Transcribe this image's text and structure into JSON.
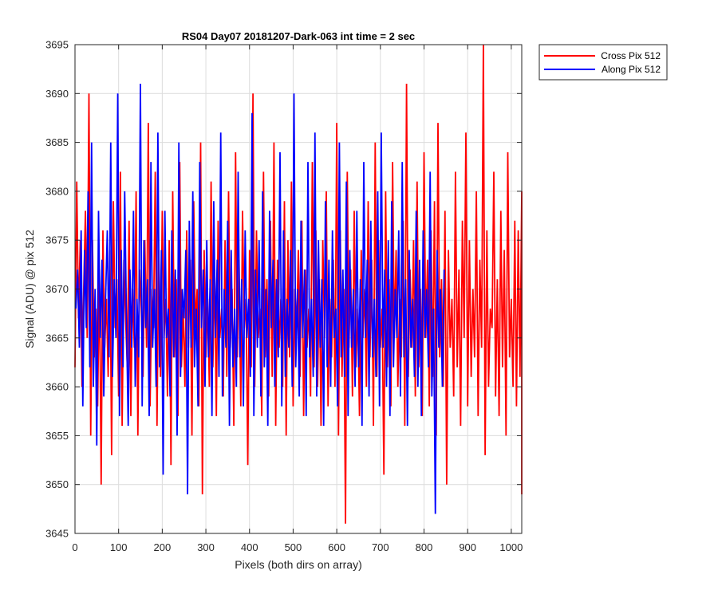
{
  "chart_data": {
    "type": "line",
    "title": "RS04 Day07 20181207-Dark-063 int time = 2 sec",
    "xlabel": "Pixels (both dirs on array)",
    "ylabel": "Signal (ADU) @ pix 512",
    "xlim": [
      0,
      1024
    ],
    "ylim": [
      3645,
      3695
    ],
    "xticks": [
      0,
      100,
      200,
      300,
      400,
      500,
      600,
      700,
      800,
      900,
      1000
    ],
    "yticks": [
      3645,
      3650,
      3655,
      3660,
      3665,
      3670,
      3675,
      3680,
      3685,
      3690,
      3695
    ],
    "grid": true,
    "legend_position": "outside-top-right",
    "series": [
      {
        "name": "Cross Pix 512",
        "color": "#ff0000",
        "x_start": 0,
        "x_step": 4,
        "y": [
          3662,
          3681,
          3667,
          3675,
          3660,
          3670,
          3678,
          3665,
          3690,
          3655,
          3675,
          3663,
          3668,
          3658,
          3672,
          3650,
          3676,
          3664,
          3669,
          3661,
          3674,
          3653,
          3679,
          3666,
          3671,
          3659,
          3682,
          3656,
          3673,
          3667,
          3662,
          3677,
          3657,
          3670,
          3664,
          3680,
          3655,
          3672,
          3668,
          3661,
          3675,
          3664,
          3687,
          3658,
          3670,
          3666,
          3682,
          3656,
          3674,
          3661,
          3678,
          3665,
          3669,
          3659,
          3675,
          3652,
          3680,
          3663,
          3671,
          3657,
          3683,
          3662,
          3668,
          3660,
          3676,
          3664,
          3673,
          3655,
          3679,
          3666,
          3670,
          3658,
          3685,
          3649,
          3674,
          3663,
          3669,
          3660,
          3681,
          3662,
          3672,
          3657,
          3677,
          3665,
          3668,
          3659,
          3675,
          3661,
          3680,
          3664,
          3670,
          3656,
          3684,
          3663,
          3673,
          3658,
          3678,
          3666,
          3669,
          3652,
          3674,
          3662,
          3690,
          3660,
          3676,
          3665,
          3668,
          3657,
          3682,
          3663,
          3671,
          3659,
          3677,
          3661,
          3685,
          3656,
          3673,
          3664,
          3669,
          3660,
          3679,
          3655,
          3675,
          3663,
          3681,
          3658,
          3670,
          3666,
          3674,
          3661,
          3677,
          3657,
          3672,
          3664,
          3668,
          3659,
          3683,
          3662,
          3676,
          3660,
          3671,
          3656,
          3675,
          3665,
          3680,
          3658,
          3669,
          3663,
          3673,
          3660,
          3687,
          3655,
          3676,
          3661,
          3670,
          3646,
          3682,
          3664,
          3672,
          3659,
          3678,
          3662,
          3668,
          3657,
          3674,
          3665,
          3670,
          3660,
          3679,
          3663,
          3673,
          3656,
          3685,
          3661,
          3675,
          3664,
          3668,
          3651,
          3680,
          3662,
          3671,
          3658,
          3683,
          3665,
          3674,
          3660,
          3669,
          3663,
          3677,
          3656,
          3691,
          3661,
          3672,
          3664,
          3675,
          3659,
          3681,
          3662,
          3670,
          3657,
          3684,
          3665,
          3673,
          3658,
          3676,
          3661,
          3679,
          3655,
          3687,
          3663,
          3671,
          3660,
          3678,
          3650,
          3674,
          3664,
          3669,
          3659,
          3682,
          3662,
          3672,
          3656,
          3677,
          3665,
          3686,
          3658,
          3675,
          3661,
          3670,
          3663,
          3680,
          3657,
          3673,
          3664,
          3695,
          3653,
          3676,
          3660,
          3668,
          3666,
          3682,
          3659,
          3671,
          3657,
          3678,
          3662,
          3674,
          3655,
          3684,
          3663,
          3669,
          3660,
          3677,
          3658,
          3676,
          3661,
          3680,
          3649
        ]
      },
      {
        "name": "Along Pix 512",
        "color": "#0000ff",
        "x_start": 2,
        "x_step": 4,
        "y": [
          3668,
          3672,
          3664,
          3676,
          3658,
          3674,
          3666,
          3680,
          3662,
          3685,
          3660,
          3670,
          3654,
          3678,
          3665,
          3673,
          3659,
          3669,
          3676,
          3663,
          3685,
          3661,
          3671,
          3665,
          3690,
          3657,
          3674,
          3662,
          3680,
          3667,
          3656,
          3672,
          3664,
          3678,
          3660,
          3669,
          3663,
          3691,
          3658,
          3675,
          3666,
          3671,
          3657,
          3683,
          3664,
          3670,
          3660,
          3686,
          3662,
          3674,
          3651,
          3678,
          3665,
          3668,
          3659,
          3676,
          3663,
          3672,
          3655,
          3685,
          3661,
          3670,
          3667,
          3674,
          3649,
          3677,
          3664,
          3680,
          3662,
          3668,
          3658,
          3683,
          3666,
          3672,
          3660,
          3675,
          3663,
          3671,
          3657,
          3679,
          3665,
          3673,
          3661,
          3686,
          3659,
          3670,
          3664,
          3677,
          3656,
          3674,
          3662,
          3668,
          3660,
          3682,
          3663,
          3671,
          3658,
          3676,
          3665,
          3669,
          3661,
          3688,
          3657,
          3672,
          3664,
          3675,
          3659,
          3680,
          3662,
          3670,
          3656,
          3678,
          3666,
          3673,
          3660,
          3671,
          3663,
          3684,
          3658,
          3676,
          3661,
          3669,
          3664,
          3674,
          3660,
          3690,
          3662,
          3670,
          3659,
          3677,
          3665,
          3672,
          3657,
          3683,
          3663,
          3669,
          3661,
          3686,
          3659,
          3675,
          3664,
          3671,
          3656,
          3679,
          3662,
          3673,
          3660,
          3676,
          3665,
          3668,
          3658,
          3685,
          3663,
          3672,
          3661,
          3681,
          3657,
          3674,
          3664,
          3670,
          3660,
          3678,
          3662,
          3671,
          3656,
          3683,
          3665,
          3673,
          3659,
          3677,
          3663,
          3669,
          3661,
          3680,
          3658,
          3686,
          3664,
          3672,
          3660,
          3675,
          3657,
          3679,
          3662,
          3670,
          3665,
          3676,
          3659,
          3683,
          3663,
          3671,
          3656,
          3674,
          3664,
          3669,
          3661,
          3678,
          3660,
          3673,
          3657,
          3676,
          3665,
          3670,
          3662,
          3682,
          3659,
          3668,
          3647,
          3674,
          3664,
          3670,
          3660,
          3672
        ]
      }
    ]
  }
}
